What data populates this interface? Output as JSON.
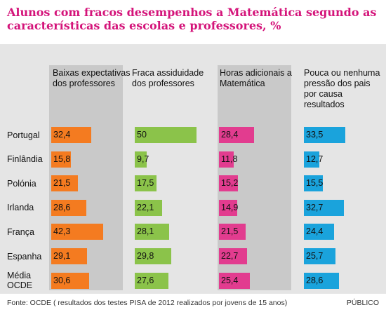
{
  "chart_data": {
    "type": "bar",
    "title": "Alunos com fracos desempenhos a Matemática segundo as características das escolas e professores, %",
    "categories": [
      "Portugal",
      "Finlândia",
      "Polónia",
      "Irlanda",
      "França",
      "Espanha",
      "Média OCDE"
    ],
    "series": [
      {
        "name": "Baixas expectativas dos professores",
        "color": "#f47b20",
        "values": [
          32.4,
          15.8,
          21.5,
          28.6,
          42.3,
          29.1,
          30.6
        ],
        "labels": [
          "32,4",
          "15,8",
          "21,5",
          "28,6",
          "42,3",
          "29,1",
          "30,6"
        ]
      },
      {
        "name": "Fraca assiduidade dos professores",
        "color": "#8bc34a",
        "values": [
          50,
          9.7,
          17.5,
          22.1,
          28.1,
          29.8,
          27.6
        ],
        "labels": [
          "50",
          "9,7",
          "17,5",
          "22,1",
          "28,1",
          "29,8",
          "27,6"
        ]
      },
      {
        "name": "Horas adicionais a Matemática",
        "color": "#e23c8f",
        "values": [
          28.4,
          11.8,
          15.2,
          14.9,
          21.5,
          22.7,
          25.4
        ],
        "labels": [
          "28,4",
          "11,8",
          "15,2",
          "14,9",
          "21,5",
          "22,7",
          "25,4"
        ]
      },
      {
        "name": "Pouca ou nenhuma pressão dos pais por causa resultados",
        "color": "#1aa3dc",
        "values": [
          33.5,
          12.7,
          15.5,
          32.7,
          24.4,
          25.7,
          28.6
        ],
        "labels": [
          "33,5",
          "12,7",
          "15,5",
          "32,7",
          "24,4",
          "25,7",
          "28,6"
        ]
      }
    ]
  },
  "source": "Fonte: OCDE ( resultados dos testes PISA de 2012 realizados por jovens de 15 anos)",
  "brand": "PÚBLICO"
}
